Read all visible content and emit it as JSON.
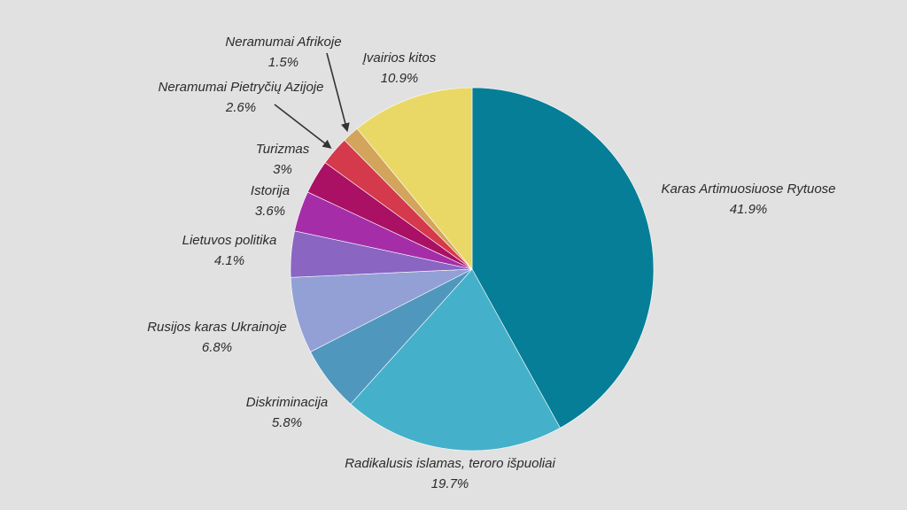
{
  "chart_data": {
    "type": "pie",
    "title": "",
    "start_angle_deg": 0,
    "direction": "clockwise",
    "slices": [
      {
        "label": "Karas Artimuosiuose Rytuose",
        "value": 41.9,
        "value_label": "41.9%",
        "color": "#067e97"
      },
      {
        "label": "Radikalusis islamas, teroro išpuoliai",
        "value": 19.7,
        "value_label": "19.7%",
        "color": "#45b0c9"
      },
      {
        "label": "Diskriminacija",
        "value": 5.8,
        "value_label": "5.8%",
        "color": "#5097be"
      },
      {
        "label": "Rusijos karas Ukrainoje",
        "value": 6.8,
        "value_label": "6.8%",
        "color": "#92a0d5"
      },
      {
        "label": "Lietuvos politika",
        "value": 4.1,
        "value_label": "4.1%",
        "color": "#8a65c2"
      },
      {
        "label": "Istorija",
        "value": 3.6,
        "value_label": "3.6%",
        "color": "#a52ea8"
      },
      {
        "label": "Turizmas",
        "value": 3,
        "value_label": "3%",
        "color": "#aa1064"
      },
      {
        "label": "Neramumai Pietryčių Azijoje",
        "value": 2.6,
        "value_label": "2.6%",
        "color": "#d43a4b"
      },
      {
        "label": "Neramumai  Afrikoje",
        "value": 1.5,
        "value_label": "1.5%",
        "color": "#d3a45c"
      },
      {
        "label": "Įvairios kitos",
        "value": 10.9,
        "value_label": "10.9%",
        "color": "#e9d866"
      }
    ]
  }
}
